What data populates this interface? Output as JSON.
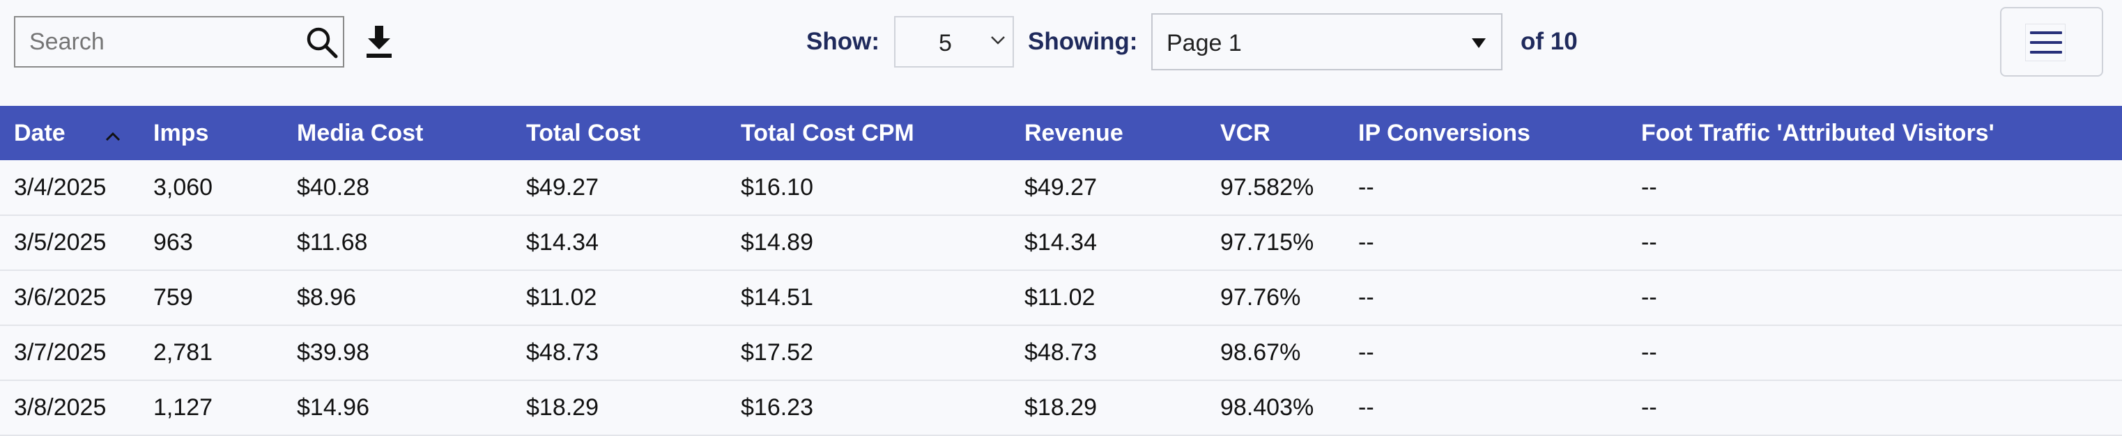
{
  "toolbar": {
    "search": {
      "placeholder": "Search",
      "value": ""
    },
    "show_label": "Show:",
    "show_value": "5",
    "showing_label": "Showing:",
    "page_value": "Page 1",
    "of_total": "of 10"
  },
  "table": {
    "columns": [
      "Date",
      "Imps",
      "Media Cost",
      "Total Cost",
      "Total Cost CPM",
      "Revenue",
      "VCR",
      "IP Conversions",
      "Foot Traffic 'Attributed Visitors'"
    ],
    "sort": {
      "column": "Date",
      "direction": "ascending"
    },
    "rows": [
      [
        "3/4/2025",
        "3,060",
        "$40.28",
        "$49.27",
        "$16.10",
        "$49.27",
        "97.582%",
        "--",
        "--"
      ],
      [
        "3/5/2025",
        "963",
        "$11.68",
        "$14.34",
        "$14.89",
        "$14.34",
        "97.715%",
        "--",
        "--"
      ],
      [
        "3/6/2025",
        "759",
        "$8.96",
        "$11.02",
        "$14.51",
        "$11.02",
        "97.76%",
        "--",
        "--"
      ],
      [
        "3/7/2025",
        "2,781",
        "$39.98",
        "$48.73",
        "$17.52",
        "$48.73",
        "98.67%",
        "--",
        "--"
      ],
      [
        "3/8/2025",
        "1,127",
        "$14.96",
        "$18.29",
        "$16.23",
        "$18.29",
        "98.403%",
        "--",
        "--"
      ]
    ]
  },
  "colors": {
    "header_bg": "#4253b8",
    "label_text": "#1f2a5c",
    "page_bg": "#f8f9fc"
  },
  "icons": [
    "search-icon",
    "download-icon",
    "chevron-down-icon",
    "caret-down-icon",
    "hamburger-menu-icon",
    "sort-ascending-icon"
  ]
}
